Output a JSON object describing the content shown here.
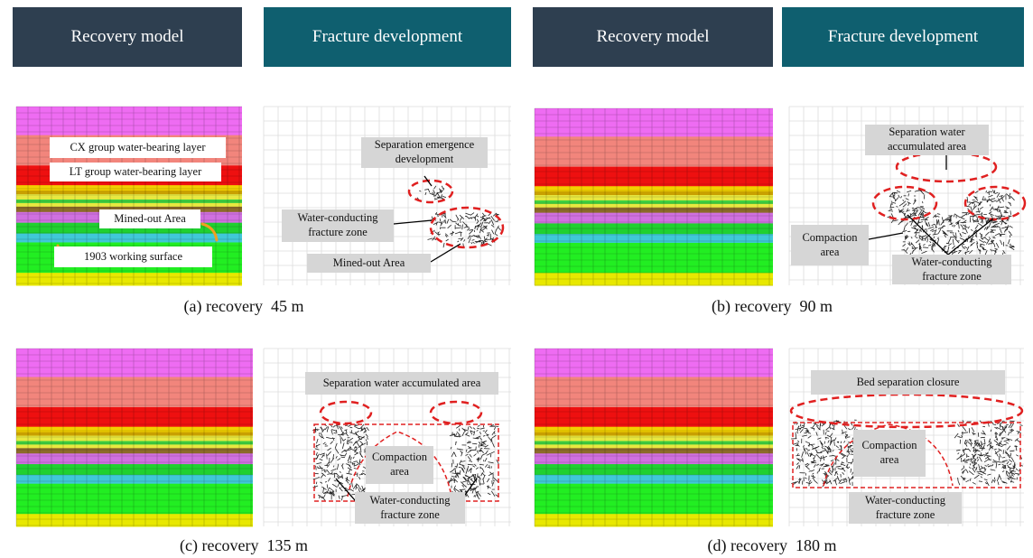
{
  "headers": [
    "Recovery model",
    "Fracture development",
    "Recovery model",
    "Fracture development"
  ],
  "panels": [
    {
      "caption": "(a) recovery  45 m",
      "model_labels": [
        "CX group water-bearing layer",
        "LT group water-bearing layer",
        "Mined-out Area",
        "1903 working surface"
      ],
      "fracture_labels": [
        "Separation emergence development",
        "Water-conducting fracture zone",
        "Mined-out Area"
      ]
    },
    {
      "caption": "(b) recovery  90 m",
      "fracture_labels": [
        "Separation water accumulated area",
        "Compaction area",
        "Water-conducting fracture zone"
      ]
    },
    {
      "caption": "(c) recovery  135 m",
      "fracture_labels": [
        "Separation water accumulated area",
        "Compaction area",
        "Water-conducting fracture zone"
      ]
    },
    {
      "caption": "(d) recovery  180 m",
      "fracture_labels": [
        "Bed separation closure",
        "Compaction area",
        "Water-conducting fracture zone"
      ]
    }
  ]
}
